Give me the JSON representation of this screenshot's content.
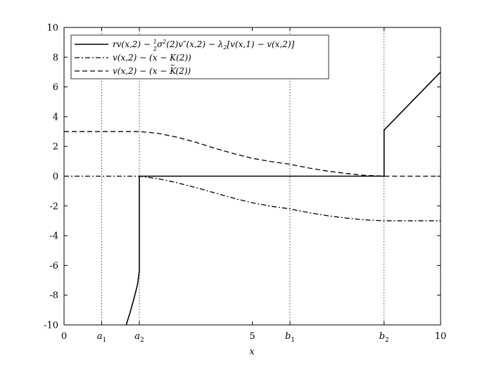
{
  "chart_data": {
    "type": "line",
    "title": "",
    "xlabel": "x",
    "ylabel": "",
    "xlim": [
      0,
      10
    ],
    "ylim": [
      -10,
      10
    ],
    "grid": false,
    "legend_position": "top-left",
    "x_ticks": [
      {
        "value": 0,
        "label": "0"
      },
      {
        "value": 1,
        "label": "a",
        "sub": "1"
      },
      {
        "value": 2,
        "label": "a",
        "sub": "2"
      },
      {
        "value": 5,
        "label": "5"
      },
      {
        "value": 6,
        "label": "b",
        "sub": "1"
      },
      {
        "value": 8.5,
        "label": "b",
        "sub": "2"
      },
      {
        "value": 10,
        "label": "10"
      }
    ],
    "y_ticks": [
      {
        "value": 10,
        "label": "10"
      },
      {
        "value": 8,
        "label": "8"
      },
      {
        "value": 6,
        "label": "6"
      },
      {
        "value": 4,
        "label": "4"
      },
      {
        "value": 2,
        "label": "2"
      },
      {
        "value": 0,
        "label": "0"
      },
      {
        "value": -2,
        "label": "-2"
      },
      {
        "value": -4,
        "label": "-4"
      },
      {
        "value": -6,
        "label": "-6"
      },
      {
        "value": -8,
        "label": "-8"
      },
      {
        "value": -10,
        "label": "-10"
      }
    ],
    "vlines": [
      1,
      2,
      6,
      8.5
    ],
    "series": [
      {
        "name": "rv(x,2) − ½σ²(2)v″(x,2) − λ₂[v(x,1) − v(x,2)]",
        "style": "solid",
        "points": [
          [
            1.65,
            -10
          ],
          [
            1.75,
            -9.2
          ],
          [
            1.85,
            -8.3
          ],
          [
            1.95,
            -7.3
          ],
          [
            2.0,
            -6.4
          ],
          [
            2.0,
            0
          ],
          [
            8.5,
            0
          ],
          [
            8.5,
            3.1
          ],
          [
            10,
            7.0
          ]
        ]
      },
      {
        "name": "v(x,2) − (x − K(2))",
        "style": "dashdot",
        "points": [
          [
            0,
            0
          ],
          [
            2.0,
            0
          ],
          [
            2.5,
            -0.17
          ],
          [
            3.0,
            -0.44
          ],
          [
            3.5,
            -0.77
          ],
          [
            4.0,
            -1.12
          ],
          [
            4.5,
            -1.48
          ],
          [
            5.0,
            -1.79
          ],
          [
            5.5,
            -2.02
          ],
          [
            6.0,
            -2.2
          ],
          [
            6.5,
            -2.45
          ],
          [
            7.0,
            -2.66
          ],
          [
            7.5,
            -2.82
          ],
          [
            8.0,
            -2.94
          ],
          [
            8.5,
            -3.0
          ],
          [
            10,
            -3.0
          ]
        ]
      },
      {
        "name": "v(x,2) − (x − K̃(2))",
        "style": "dashed",
        "points": [
          [
            0,
            3.0
          ],
          [
            2.0,
            3.0
          ],
          [
            2.5,
            2.88
          ],
          [
            3.0,
            2.62
          ],
          [
            3.5,
            2.28
          ],
          [
            4.0,
            1.88
          ],
          [
            4.5,
            1.52
          ],
          [
            5.0,
            1.2
          ],
          [
            5.5,
            0.98
          ],
          [
            6.0,
            0.8
          ],
          [
            6.5,
            0.55
          ],
          [
            7.0,
            0.34
          ],
          [
            7.5,
            0.18
          ],
          [
            8.0,
            0.05
          ],
          [
            8.5,
            0.0
          ],
          [
            10,
            0.0
          ]
        ]
      }
    ]
  }
}
